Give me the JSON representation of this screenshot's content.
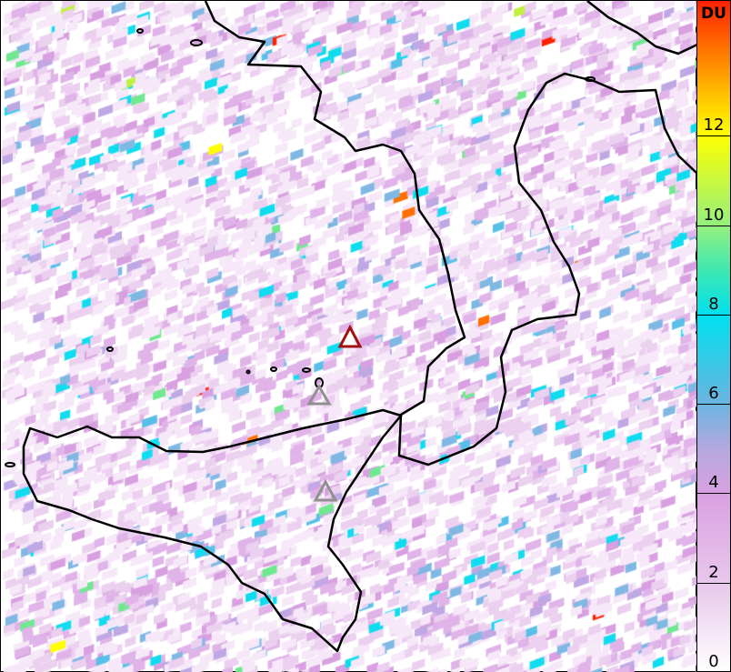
{
  "colorbar": {
    "unit": "DU",
    "ticks": [
      "0",
      "2",
      "4",
      "6",
      "8",
      "10",
      "12"
    ],
    "range": [
      0,
      14
    ]
  },
  "markers": [
    {
      "name": "volcano-marker-active",
      "color": "#a01010"
    },
    {
      "name": "volcano-marker",
      "color": "#909090"
    },
    {
      "name": "volcano-marker",
      "color": "#909090"
    }
  ],
  "pixel_palette": [
    "#f6e8f8",
    "#ecd0f0",
    "#e0b4e8",
    "#d8a0e0",
    "#c0a8e4",
    "#80b8e4",
    "#58c0e8",
    "#10dcf0",
    "#70e890",
    "#c0f040",
    "#ffff00",
    "#ff7000",
    "#ff2000"
  ],
  "coastline_color": "#000000"
}
